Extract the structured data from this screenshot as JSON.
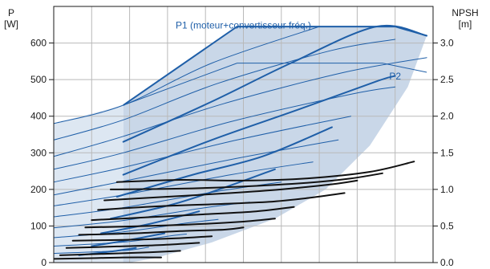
{
  "chart_data": {
    "type": "line",
    "title": "",
    "left_axis": {
      "label": "P",
      "unit": "[W]",
      "range": [
        0,
        700
      ],
      "ticks": [
        "0",
        "100",
        "200",
        "300",
        "400",
        "500",
        "600"
      ],
      "tick_values": [
        0,
        100,
        200,
        300,
        400,
        500,
        600
      ]
    },
    "right_axis": {
      "label": "NPSH",
      "unit": "[m]",
      "range": [
        0,
        3.5
      ],
      "ticks": [
        "0.0",
        "0.5",
        "1.0",
        "1.5",
        "2.0",
        "2.5",
        "3.0"
      ],
      "tick_values": [
        0,
        0.5,
        1.0,
        1.5,
        2.0,
        2.5,
        3.0
      ]
    },
    "x_axis": {
      "range": [
        0,
        600
      ],
      "grid_count": 10
    },
    "grid": true,
    "annotations": [
      {
        "text": "P1 (moteur+convertisseur fréq.)",
        "x": 300,
        "y": 640
      },
      {
        "text": "P2",
        "x": 540,
        "y": 500
      }
    ],
    "envelope": [
      [
        25,
        0
      ],
      [
        60,
        140
      ],
      [
        110,
        160
      ],
      [
        110,
        430
      ],
      [
        290,
        645
      ],
      [
        540,
        645
      ],
      [
        590,
        620
      ],
      [
        560,
        480
      ],
      [
        500,
        320
      ],
      [
        430,
        200
      ],
      [
        350,
        120
      ],
      [
        250,
        55
      ],
      [
        160,
        12
      ],
      [
        120,
        0
      ]
    ],
    "inner_envelope": [
      [
        110,
        430
      ],
      [
        290,
        545
      ],
      [
        520,
        545
      ],
      [
        590,
        520
      ]
    ],
    "power_curves": [
      {
        "points": [
          [
            110,
            330
          ],
          [
            250,
            440
          ],
          [
            375,
            545
          ],
          [
            510,
            645
          ],
          [
            590,
            620
          ]
        ],
        "width": 2
      },
      {
        "points": [
          [
            110,
            240
          ],
          [
            250,
            335
          ],
          [
            390,
            420
          ],
          [
            510,
            495
          ],
          [
            540,
            510
          ]
        ],
        "width": 2
      },
      {
        "points": [
          [
            100,
            180
          ],
          [
            220,
            240
          ],
          [
            330,
            290
          ],
          [
            440,
            370
          ]
        ],
        "width": 2
      },
      {
        "points": [
          [
            90,
            120
          ],
          [
            190,
            160
          ],
          [
            270,
            205
          ],
          [
            350,
            255
          ]
        ],
        "width": 2
      },
      {
        "points": [
          [
            75,
            80
          ],
          [
            150,
            105
          ],
          [
            230,
            140
          ]
        ],
        "width": 2
      },
      {
        "points": [
          [
            60,
            45
          ],
          [
            120,
            62
          ],
          [
            175,
            80
          ]
        ],
        "width": 2
      },
      {
        "points": [
          [
            40,
            20
          ],
          [
            90,
            30
          ],
          [
            130,
            40
          ]
        ],
        "width": 2
      },
      {
        "points": [
          [
            0,
            380
          ],
          [
            110,
            430
          ],
          [
            250,
            545
          ],
          [
            420,
            645
          ]
        ],
        "width": 1
      },
      {
        "points": [
          [
            0,
            335
          ],
          [
            110,
            390
          ],
          [
            260,
            490
          ],
          [
            440,
            580
          ],
          [
            540,
            610
          ]
        ],
        "width": 1
      },
      {
        "points": [
          [
            0,
            290
          ],
          [
            110,
            345
          ],
          [
            270,
            435
          ],
          [
            460,
            520
          ],
          [
            590,
            560
          ]
        ],
        "width": 1
      },
      {
        "points": [
          [
            0,
            255
          ],
          [
            110,
            300
          ],
          [
            280,
            385
          ],
          [
            470,
            460
          ],
          [
            540,
            480
          ]
        ],
        "width": 1
      },
      {
        "points": [
          [
            0,
            220
          ],
          [
            110,
            260
          ],
          [
            290,
            335
          ],
          [
            470,
            400
          ]
        ],
        "width": 1
      },
      {
        "points": [
          [
            0,
            185
          ],
          [
            110,
            222
          ],
          [
            290,
            285
          ],
          [
            450,
            335
          ]
        ],
        "width": 1
      },
      {
        "points": [
          [
            0,
            155
          ],
          [
            110,
            185
          ],
          [
            280,
            240
          ],
          [
            410,
            275
          ]
        ],
        "width": 1
      },
      {
        "points": [
          [
            0,
            125
          ],
          [
            110,
            150
          ],
          [
            260,
            195
          ],
          [
            360,
            220
          ]
        ],
        "width": 1
      },
      {
        "points": [
          [
            0,
            95
          ],
          [
            110,
            115
          ],
          [
            240,
            150
          ],
          [
            310,
            165
          ]
        ],
        "width": 1
      },
      {
        "points": [
          [
            0,
            68
          ],
          [
            110,
            84
          ],
          [
            210,
            108
          ],
          [
            260,
            118
          ]
        ],
        "width": 1
      },
      {
        "points": [
          [
            0,
            45
          ],
          [
            110,
            56
          ],
          [
            180,
            72
          ],
          [
            210,
            78
          ]
        ],
        "width": 1
      },
      {
        "points": [
          [
            0,
            25
          ],
          [
            110,
            33
          ],
          [
            150,
            42
          ]
        ],
        "width": 1
      }
    ],
    "npsh_curves": [
      {
        "points": [
          [
            100,
            1.1
          ],
          [
            200,
            1.13
          ],
          [
            300,
            1.12
          ],
          [
            400,
            1.15
          ],
          [
            500,
            1.24
          ],
          [
            570,
            1.38
          ]
        ]
      },
      {
        "points": [
          [
            90,
            1.0
          ],
          [
            200,
            1.01
          ],
          [
            300,
            1.04
          ],
          [
            400,
            1.09
          ],
          [
            470,
            1.15
          ],
          [
            520,
            1.22
          ]
        ]
      },
      {
        "points": [
          [
            80,
            0.85
          ],
          [
            180,
            0.9
          ],
          [
            280,
            0.95
          ],
          [
            360,
            1.0
          ],
          [
            440,
            1.07
          ],
          [
            480,
            1.12
          ]
        ]
      },
      {
        "points": [
          [
            70,
            0.72
          ],
          [
            170,
            0.77
          ],
          [
            260,
            0.8
          ],
          [
            340,
            0.83
          ],
          [
            400,
            0.88
          ],
          [
            460,
            0.95
          ]
        ]
      },
      {
        "points": [
          [
            60,
            0.58
          ],
          [
            150,
            0.62
          ],
          [
            240,
            0.66
          ],
          [
            320,
            0.7
          ],
          [
            380,
            0.76
          ]
        ]
      },
      {
        "points": [
          [
            50,
            0.48
          ],
          [
            150,
            0.5
          ],
          [
            240,
            0.53
          ],
          [
            300,
            0.56
          ],
          [
            350,
            0.6
          ]
        ]
      },
      {
        "points": [
          [
            40,
            0.38
          ],
          [
            130,
            0.4
          ],
          [
            200,
            0.43
          ],
          [
            270,
            0.45
          ],
          [
            300,
            0.48
          ]
        ]
      },
      {
        "points": [
          [
            30,
            0.3
          ],
          [
            110,
            0.31
          ],
          [
            190,
            0.33
          ],
          [
            250,
            0.36
          ]
        ]
      },
      {
        "points": [
          [
            20,
            0.2
          ],
          [
            100,
            0.22
          ],
          [
            170,
            0.24
          ],
          [
            230,
            0.27
          ]
        ]
      },
      {
        "points": [
          [
            10,
            0.1
          ],
          [
            80,
            0.12
          ],
          [
            150,
            0.14
          ],
          [
            200,
            0.16
          ]
        ]
      },
      {
        "points": [
          [
            0,
            0.05
          ],
          [
            60,
            0.06
          ],
          [
            110,
            0.07
          ],
          [
            170,
            0.07
          ]
        ]
      }
    ],
    "colors": {
      "envelope_fill": "#c9d7e8",
      "envelope_fill_light": "#dde7f2",
      "power_curve": "#1f5fa8",
      "npsh_curve": "#111111",
      "annotation": "#1f5fa8"
    }
  }
}
